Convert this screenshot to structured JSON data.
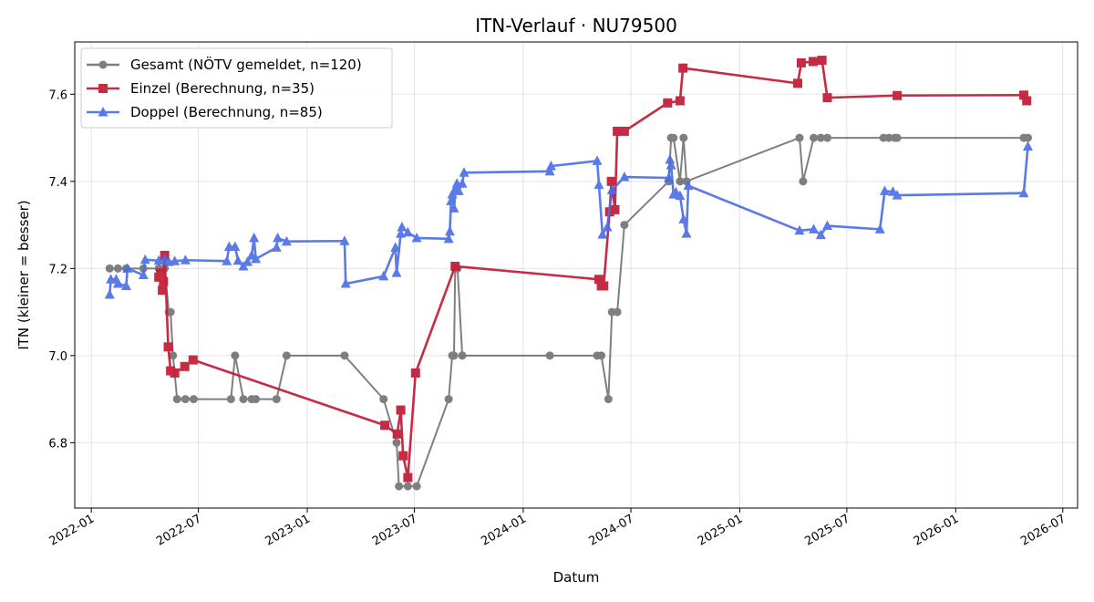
{
  "chart_data": {
    "type": "line",
    "title": "ITN-Verlauf · NU79500",
    "xlabel": "Datum",
    "ylabel": "ITN  (kleiner = besser)",
    "xlim": [
      "2021-12-04",
      "2026-07-26"
    ],
    "ylim": [
      6.65,
      7.72
    ],
    "x_ticks": [
      "2022-01",
      "2022-07",
      "2023-01",
      "2023-07",
      "2024-01",
      "2024-07",
      "2025-01",
      "2025-07",
      "2026-01",
      "2026-07"
    ],
    "y_ticks": [
      6.8,
      7.0,
      7.2,
      7.4,
      7.6
    ],
    "grid": true,
    "legend_position": "upper-left",
    "series": [
      {
        "name": "Gesamt (NÖTV gemeldet, n=120)",
        "color": "#555555",
        "marker": "circle",
        "points": [
          [
            "2022-02-01",
            7.2
          ],
          [
            "2022-02-15",
            7.2
          ],
          [
            "2022-03-01",
            7.2
          ],
          [
            "2022-03-30",
            7.2
          ],
          [
            "2022-04-25",
            7.2
          ],
          [
            "2022-05-05",
            7.2
          ],
          [
            "2022-05-12",
            7.1
          ],
          [
            "2022-05-15",
            7.1
          ],
          [
            "2022-05-19",
            7.0
          ],
          [
            "2022-05-26",
            6.9
          ],
          [
            "2022-06-09",
            6.9
          ],
          [
            "2022-06-23",
            6.9
          ],
          [
            "2022-08-25",
            6.9
          ],
          [
            "2022-09-01",
            7.0
          ],
          [
            "2022-09-15",
            6.9
          ],
          [
            "2022-09-29",
            6.9
          ],
          [
            "2022-10-06",
            6.9
          ],
          [
            "2022-11-10",
            6.9
          ],
          [
            "2022-11-27",
            7.0
          ],
          [
            "2023-03-05",
            7.0
          ],
          [
            "2023-05-10",
            6.9
          ],
          [
            "2023-06-01",
            6.8
          ],
          [
            "2023-06-05",
            6.7
          ],
          [
            "2023-06-20",
            6.7
          ],
          [
            "2023-07-05",
            6.7
          ],
          [
            "2023-08-28",
            6.9
          ],
          [
            "2023-09-03",
            7.0
          ],
          [
            "2023-09-06",
            7.0
          ],
          [
            "2023-09-08",
            7.2
          ],
          [
            "2023-09-12",
            7.2
          ],
          [
            "2023-09-20",
            7.0
          ],
          [
            "2024-02-15",
            7.0
          ],
          [
            "2024-05-05",
            7.0
          ],
          [
            "2024-05-12",
            7.0
          ],
          [
            "2024-05-24",
            6.9
          ],
          [
            "2024-05-30",
            7.1
          ],
          [
            "2024-06-08",
            7.1
          ],
          [
            "2024-06-20",
            7.3
          ],
          [
            "2024-09-03",
            7.4
          ],
          [
            "2024-09-07",
            7.5
          ],
          [
            "2024-09-11",
            7.5
          ],
          [
            "2024-09-22",
            7.4
          ],
          [
            "2024-09-28",
            7.5
          ],
          [
            "2024-10-03",
            7.4
          ],
          [
            "2025-04-12",
            7.5
          ],
          [
            "2025-04-18",
            7.4
          ],
          [
            "2025-05-06",
            7.5
          ],
          [
            "2025-05-18",
            7.5
          ],
          [
            "2025-05-29",
            7.5
          ],
          [
            "2025-09-01",
            7.5
          ],
          [
            "2025-09-10",
            7.5
          ],
          [
            "2025-09-20",
            7.5
          ],
          [
            "2025-09-24",
            7.5
          ],
          [
            "2026-04-26",
            7.5
          ],
          [
            "2026-05-03",
            7.5
          ]
        ]
      },
      {
        "name": "Einzel (Berechnung, n=35)",
        "color": "#c4203b",
        "marker": "square",
        "points": [
          [
            "2022-04-25",
            7.18
          ],
          [
            "2022-04-28",
            7.19
          ],
          [
            "2022-05-01",
            7.15
          ],
          [
            "2022-05-03",
            7.17
          ],
          [
            "2022-05-05",
            7.23
          ],
          [
            "2022-05-11",
            7.02
          ],
          [
            "2022-05-15",
            6.965
          ],
          [
            "2022-05-22",
            6.96
          ],
          [
            "2022-06-08",
            6.975
          ],
          [
            "2022-06-22",
            6.99
          ],
          [
            "2023-05-12",
            6.84
          ],
          [
            "2023-06-02",
            6.82
          ],
          [
            "2023-06-08",
            6.875
          ],
          [
            "2023-06-12",
            6.77
          ],
          [
            "2023-06-20",
            6.72
          ],
          [
            "2023-07-03",
            6.96
          ],
          [
            "2023-09-08",
            7.205
          ],
          [
            "2024-05-08",
            7.175
          ],
          [
            "2024-05-12",
            7.16
          ],
          [
            "2024-05-16",
            7.16
          ],
          [
            "2024-05-26",
            7.33
          ],
          [
            "2024-05-29",
            7.4
          ],
          [
            "2024-06-04",
            7.335
          ],
          [
            "2024-06-08",
            7.515
          ],
          [
            "2024-06-20",
            7.515
          ],
          [
            "2024-09-01",
            7.58
          ],
          [
            "2024-09-22",
            7.585
          ],
          [
            "2024-09-27",
            7.66
          ],
          [
            "2025-04-09",
            7.625
          ],
          [
            "2025-04-15",
            7.672
          ],
          [
            "2025-05-05",
            7.675
          ],
          [
            "2025-05-20",
            7.678
          ],
          [
            "2025-05-29",
            7.592
          ],
          [
            "2025-09-24",
            7.597
          ],
          [
            "2026-04-26",
            7.598
          ],
          [
            "2026-05-01",
            7.585
          ]
        ]
      },
      {
        "name": "Doppel (Berechnung, n=85)",
        "color": "#4a6ce8",
        "marker": "triangle",
        "points": [
          [
            "2022-02-01",
            7.14
          ],
          [
            "2022-02-03",
            7.175
          ],
          [
            "2022-02-12",
            7.175
          ],
          [
            "2022-02-15",
            7.165
          ],
          [
            "2022-03-01",
            7.16
          ],
          [
            "2022-03-03",
            7.2
          ],
          [
            "2022-03-30",
            7.185
          ],
          [
            "2022-04-02",
            7.22
          ],
          [
            "2022-04-25",
            7.218
          ],
          [
            "2022-05-05",
            7.222
          ],
          [
            "2022-05-12",
            7.215
          ],
          [
            "2022-05-22",
            7.217
          ],
          [
            "2022-06-09",
            7.219
          ],
          [
            "2022-08-18",
            7.217
          ],
          [
            "2022-08-22",
            7.25
          ],
          [
            "2022-09-01",
            7.25
          ],
          [
            "2022-09-06",
            7.218
          ],
          [
            "2022-09-15",
            7.205
          ],
          [
            "2022-09-22",
            7.215
          ],
          [
            "2022-09-29",
            7.23
          ],
          [
            "2022-10-03",
            7.27
          ],
          [
            "2022-10-06",
            7.222
          ],
          [
            "2022-11-10",
            7.248
          ],
          [
            "2022-11-12",
            7.27
          ],
          [
            "2022-11-27",
            7.262
          ],
          [
            "2023-03-05",
            7.263
          ],
          [
            "2023-03-07",
            7.165
          ],
          [
            "2023-05-10",
            7.182
          ],
          [
            "2023-05-30",
            7.248
          ],
          [
            "2023-06-01",
            7.19
          ],
          [
            "2023-06-08",
            7.28
          ],
          [
            "2023-06-10",
            7.295
          ],
          [
            "2023-06-20",
            7.283
          ],
          [
            "2023-07-05",
            7.27
          ],
          [
            "2023-08-28",
            7.268
          ],
          [
            "2023-08-30",
            7.285
          ],
          [
            "2023-09-01",
            7.355
          ],
          [
            "2023-09-03",
            7.37
          ],
          [
            "2023-09-06",
            7.338
          ],
          [
            "2023-09-09",
            7.385
          ],
          [
            "2023-09-11",
            7.395
          ],
          [
            "2023-09-14",
            7.378
          ],
          [
            "2023-09-20",
            7.395
          ],
          [
            "2023-09-23",
            7.42
          ],
          [
            "2024-02-15",
            7.423
          ],
          [
            "2024-02-17",
            7.435
          ],
          [
            "2024-05-05",
            7.447
          ],
          [
            "2024-05-08",
            7.392
          ],
          [
            "2024-05-14",
            7.278
          ],
          [
            "2024-05-22",
            7.295
          ],
          [
            "2024-05-30",
            7.38
          ],
          [
            "2024-06-20",
            7.41
          ],
          [
            "2024-09-03",
            7.408
          ],
          [
            "2024-09-05",
            7.45
          ],
          [
            "2024-09-07",
            7.437
          ],
          [
            "2024-09-11",
            7.37
          ],
          [
            "2024-09-15",
            7.375
          ],
          [
            "2024-09-22",
            7.367
          ],
          [
            "2024-09-28",
            7.313
          ],
          [
            "2024-10-03",
            7.28
          ],
          [
            "2024-10-06",
            7.39
          ],
          [
            "2025-04-12",
            7.287
          ],
          [
            "2025-05-06",
            7.29
          ],
          [
            "2025-05-18",
            7.277
          ],
          [
            "2025-05-29",
            7.298
          ],
          [
            "2025-08-26",
            7.29
          ],
          [
            "2025-09-03",
            7.378
          ],
          [
            "2025-09-17",
            7.376
          ],
          [
            "2025-09-24",
            7.368
          ],
          [
            "2026-04-26",
            7.373
          ],
          [
            "2026-05-03",
            7.48
          ]
        ]
      }
    ]
  }
}
